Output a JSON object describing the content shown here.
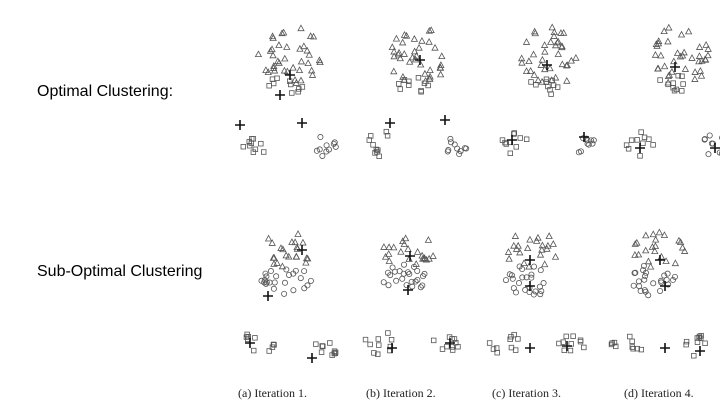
{
  "rows": [
    {
      "label": "Optimal Clustering:"
    },
    {
      "label": "Sub-Optimal Clustering"
    }
  ],
  "captions": [
    "(a) Iteration 1.",
    "(b) Iteration 2.",
    "(c) Iteration 3.",
    "(d) Iteration 4."
  ],
  "colors": {
    "marker": "#555555",
    "centroid": "#111111"
  },
  "icons": {
    "cluster_1": "triangle",
    "cluster_2": "circle",
    "cluster_3": "square",
    "centroid": "plus"
  }
}
